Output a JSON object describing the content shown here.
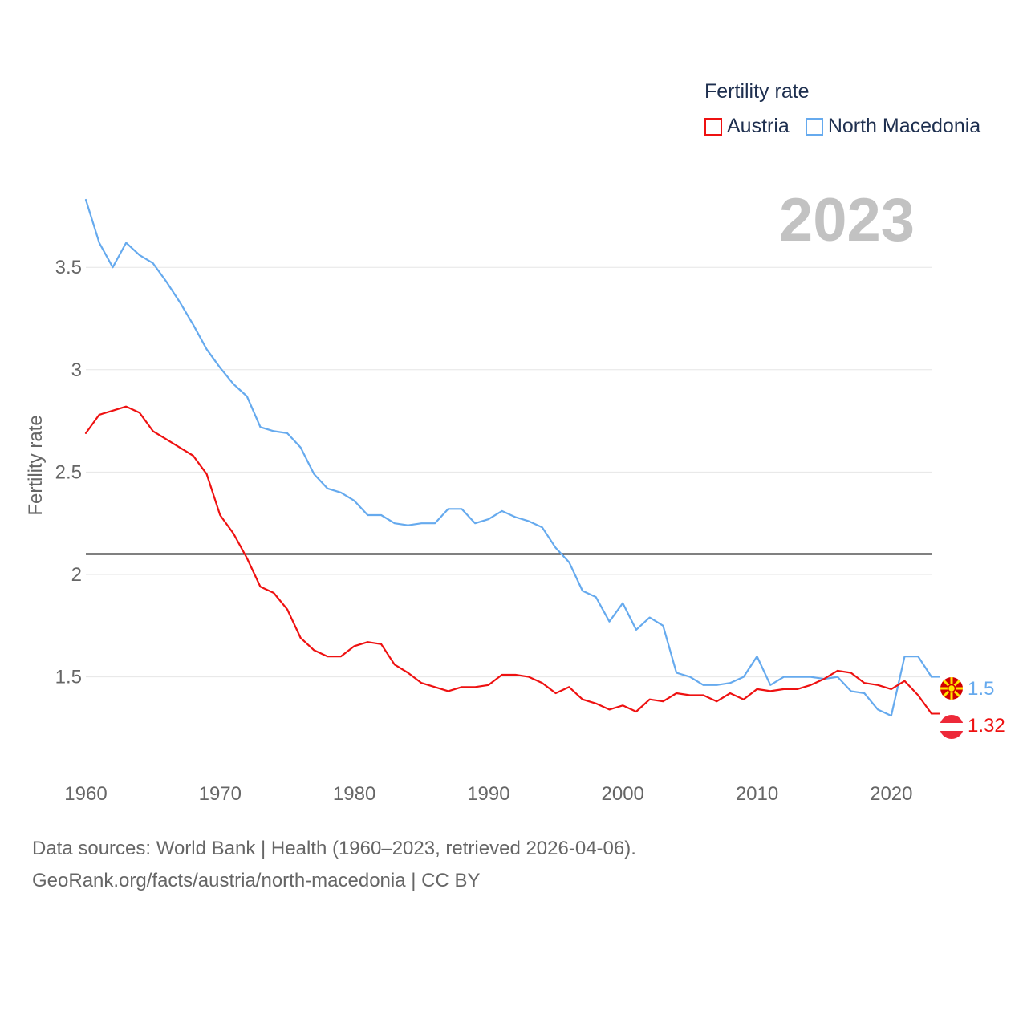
{
  "legend": {
    "title": "Fertility rate",
    "items": [
      {
        "name": "Austria",
        "color": "#ee1111"
      },
      {
        "name": "North Macedonia",
        "color": "#66aaee"
      }
    ]
  },
  "year_watermark": "2023",
  "end_labels": {
    "north_macedonia": {
      "text": "1.5",
      "flag": "north-macedonia-flag-icon"
    },
    "austria": {
      "text": "1.32",
      "flag": "austria-flag-icon"
    }
  },
  "footer": {
    "line1": "Data sources: World Bank | Health (1960–2023, retrieved 2026-04-06).",
    "line2": "GeoRank.org/facts/austria/north-macedonia | CC BY"
  },
  "chart_data": {
    "type": "line",
    "title": "Fertility rate",
    "xlabel": "",
    "ylabel": "Fertility rate",
    "x": [
      1960,
      1961,
      1962,
      1963,
      1964,
      1965,
      1966,
      1967,
      1968,
      1969,
      1970,
      1971,
      1972,
      1973,
      1974,
      1975,
      1976,
      1977,
      1978,
      1979,
      1980,
      1981,
      1982,
      1983,
      1984,
      1985,
      1986,
      1987,
      1988,
      1989,
      1990,
      1991,
      1992,
      1993,
      1994,
      1995,
      1996,
      1997,
      1998,
      1999,
      2000,
      2001,
      2002,
      2003,
      2004,
      2005,
      2006,
      2007,
      2008,
      2009,
      2010,
      2011,
      2012,
      2013,
      2014,
      2015,
      2016,
      2017,
      2018,
      2019,
      2020,
      2021,
      2022,
      2023
    ],
    "xlim": [
      1960,
      2023
    ],
    "ylim": [
      1.13,
      3.83
    ],
    "xticks": [
      1960,
      1970,
      1980,
      1990,
      2000,
      2010,
      2020
    ],
    "yticks": [
      1.5,
      2,
      2.5,
      3,
      3.5
    ],
    "ytick_labels": [
      "1.5",
      "2",
      "2.5",
      "3",
      "3.5"
    ],
    "reference_line": 2.1,
    "grid": true,
    "legend_position": "top-right",
    "series": [
      {
        "name": "Austria",
        "color": "#ee1111",
        "values": [
          2.69,
          2.78,
          2.8,
          2.82,
          2.79,
          2.7,
          2.66,
          2.62,
          2.58,
          2.49,
          2.29,
          2.2,
          2.08,
          1.94,
          1.91,
          1.83,
          1.69,
          1.63,
          1.6,
          1.6,
          1.65,
          1.67,
          1.66,
          1.56,
          1.52,
          1.47,
          1.45,
          1.43,
          1.45,
          1.45,
          1.46,
          1.51,
          1.51,
          1.5,
          1.47,
          1.42,
          1.45,
          1.39,
          1.37,
          1.34,
          1.36,
          1.33,
          1.39,
          1.38,
          1.42,
          1.41,
          1.41,
          1.38,
          1.42,
          1.39,
          1.44,
          1.43,
          1.44,
          1.44,
          1.46,
          1.49,
          1.53,
          1.52,
          1.47,
          1.46,
          1.44,
          1.48,
          1.41,
          1.32
        ]
      },
      {
        "name": "North Macedonia",
        "color": "#66aaee",
        "values": [
          3.83,
          3.62,
          3.5,
          3.62,
          3.56,
          3.52,
          3.43,
          3.33,
          3.22,
          3.1,
          3.01,
          2.93,
          2.87,
          2.72,
          2.7,
          2.69,
          2.62,
          2.49,
          2.42,
          2.4,
          2.36,
          2.29,
          2.29,
          2.25,
          2.24,
          2.25,
          2.25,
          2.32,
          2.32,
          2.25,
          2.27,
          2.31,
          2.28,
          2.26,
          2.23,
          2.13,
          2.06,
          1.92,
          1.89,
          1.77,
          1.86,
          1.73,
          1.79,
          1.75,
          1.52,
          1.5,
          1.46,
          1.46,
          1.47,
          1.5,
          1.6,
          1.46,
          1.5,
          1.5,
          1.5,
          1.49,
          1.5,
          1.43,
          1.42,
          1.34,
          1.31,
          1.6,
          1.6,
          1.5
        ]
      }
    ]
  }
}
